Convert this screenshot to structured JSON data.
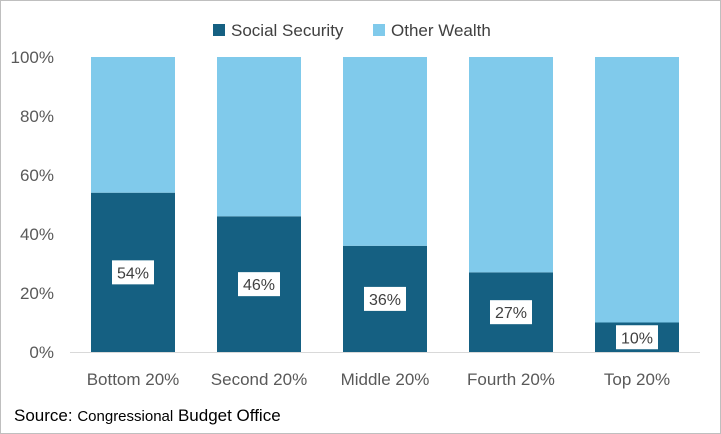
{
  "chart_data": {
    "type": "bar",
    "stacked": true,
    "percent_stacked": true,
    "categories": [
      "Bottom 20%",
      "Second 20%",
      "Middle 20%",
      "Fourth 20%",
      "Top 20%"
    ],
    "series": [
      {
        "name": "Social Security",
        "values": [
          54,
          46,
          36,
          27,
          10
        ],
        "color": "#156082"
      },
      {
        "name": "Other Wealth",
        "values": [
          46,
          54,
          64,
          73,
          90
        ],
        "color": "#80CAEB"
      }
    ],
    "data_labels": [
      "54%",
      "46%",
      "36%",
      "27%",
      "10%"
    ],
    "y_ticks": [
      "0%",
      "20%",
      "40%",
      "60%",
      "80%",
      "100%"
    ],
    "ylim": [
      0,
      100
    ],
    "grid": false,
    "legend_position": "top"
  },
  "source": {
    "prefix": "Source:",
    "org_part1": "Congressional",
    "org_part2": "Budget Office"
  }
}
